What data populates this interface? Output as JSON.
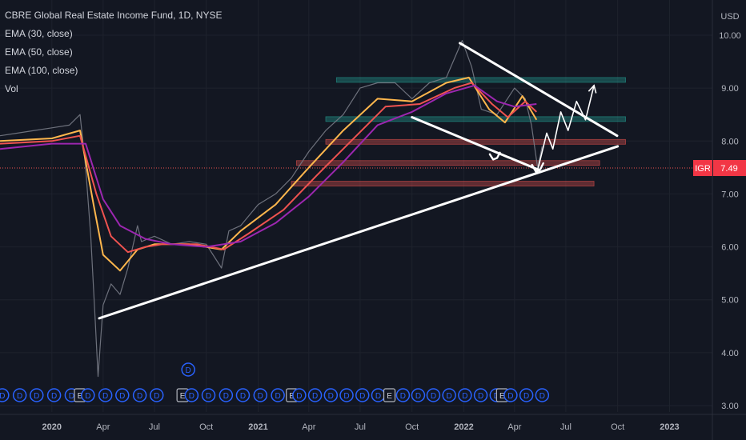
{
  "chart_data": {
    "type": "line",
    "title": "CBRE Global Real Estate Income Fund, 1D, NYSE",
    "indicators": [
      "EMA (30, close)",
      "EMA (50, close)",
      "EMA (100, close)",
      "Vol"
    ],
    "currency": "USD",
    "symbol": "IGR",
    "last_price": "7.49",
    "x_ticks": [
      "2020",
      "Apr",
      "Jul",
      "Oct",
      "2021",
      "Apr",
      "Jul",
      "Oct",
      "2022",
      "Apr",
      "Jul",
      "Oct",
      "2023"
    ],
    "y_ticks": [
      "10.00",
      "9.00",
      "8.00",
      "7.00",
      "6.00",
      "5.00",
      "4.00",
      "3.00"
    ],
    "ylim": [
      3.0,
      10.0
    ],
    "x_start": "2019-10-01",
    "x_end": "2023-03-01",
    "series": [
      {
        "name": "price",
        "color": "#787b86",
        "x": [
          "2019-10-01",
          "2019-11-01",
          "2019-12-01",
          "2020-01-01",
          "2020-02-01",
          "2020-02-20",
          "2020-03-01",
          "2020-03-10",
          "2020-03-18",
          "2020-03-23",
          "2020-04-01",
          "2020-04-15",
          "2020-05-01",
          "2020-05-15",
          "2020-06-01",
          "2020-06-08",
          "2020-07-01",
          "2020-08-01",
          "2020-09-01",
          "2020-10-01",
          "2020-10-28",
          "2020-11-10",
          "2020-12-01",
          "2021-01-01",
          "2021-02-01",
          "2021-03-01",
          "2021-04-01",
          "2021-05-01",
          "2021-06-01",
          "2021-07-01",
          "2021-08-01",
          "2021-09-01",
          "2021-10-01",
          "2021-11-01",
          "2021-12-01",
          "2021-12-29",
          "2022-01-15",
          "2022-02-01",
          "2022-03-01",
          "2022-04-01",
          "2022-04-20",
          "2022-05-01",
          "2022-05-12",
          "2022-05-20"
        ],
        "values": [
          8.1,
          8.15,
          8.2,
          8.25,
          8.3,
          8.5,
          7.5,
          6.2,
          4.6,
          3.55,
          4.9,
          5.3,
          5.1,
          5.6,
          6.4,
          6.1,
          6.2,
          6.05,
          6.1,
          6.05,
          5.6,
          6.3,
          6.4,
          6.8,
          7.0,
          7.3,
          7.8,
          8.2,
          8.5,
          9.0,
          9.1,
          9.1,
          8.8,
          9.1,
          9.2,
          9.9,
          9.4,
          8.6,
          8.5,
          9.0,
          8.8,
          8.3,
          7.49,
          7.9
        ]
      },
      {
        "name": "EMA (30, close)",
        "color": "#ffb74d",
        "x": [
          "2019-10-01",
          "2020-01-01",
          "2020-02-20",
          "2020-03-15",
          "2020-04-01",
          "2020-05-01",
          "2020-06-01",
          "2020-07-01",
          "2020-09-01",
          "2020-10-28",
          "2020-12-01",
          "2021-02-01",
          "2021-04-01",
          "2021-06-01",
          "2021-08-01",
          "2021-10-01",
          "2021-12-01",
          "2022-01-10",
          "2022-02-15",
          "2022-03-15",
          "2022-04-15",
          "2022-05-10"
        ],
        "values": [
          8.0,
          8.05,
          8.2,
          6.8,
          5.85,
          5.55,
          5.95,
          6.05,
          6.05,
          5.95,
          6.3,
          6.8,
          7.5,
          8.2,
          8.8,
          8.75,
          9.1,
          9.2,
          8.6,
          8.35,
          8.85,
          8.4
        ]
      },
      {
        "name": "EMA (50, close)",
        "color": "#ef5350",
        "x": [
          "2019-10-01",
          "2020-01-01",
          "2020-02-20",
          "2020-03-20",
          "2020-04-15",
          "2020-05-15",
          "2020-06-15",
          "2020-07-15",
          "2020-09-15",
          "2020-11-01",
          "2020-12-15",
          "2021-02-15",
          "2021-04-15",
          "2021-06-15",
          "2021-08-15",
          "2021-10-15",
          "2021-12-15",
          "2022-01-15",
          "2022-02-20",
          "2022-03-20",
          "2022-04-20",
          "2022-05-10"
        ],
        "values": [
          7.95,
          8.0,
          8.1,
          7.0,
          6.2,
          5.9,
          6.0,
          6.05,
          6.05,
          5.95,
          6.25,
          6.7,
          7.35,
          8.0,
          8.65,
          8.7,
          9.0,
          9.1,
          8.7,
          8.45,
          8.75,
          8.55
        ]
      },
      {
        "name": "EMA (100, close)",
        "color": "#9c27b0",
        "x": [
          "2019-10-01",
          "2020-01-01",
          "2020-03-01",
          "2020-04-01",
          "2020-05-01",
          "2020-06-15",
          "2020-08-01",
          "2020-10-01",
          "2020-12-01",
          "2021-02-01",
          "2021-04-01",
          "2021-06-01",
          "2021-08-01",
          "2021-10-01",
          "2021-12-01",
          "2022-01-20",
          "2022-03-01",
          "2022-04-01",
          "2022-05-10"
        ],
        "values": [
          7.85,
          7.95,
          7.95,
          6.9,
          6.4,
          6.15,
          6.05,
          6.0,
          6.1,
          6.45,
          6.95,
          7.6,
          8.3,
          8.55,
          8.9,
          9.05,
          8.75,
          8.65,
          8.7
        ]
      }
    ],
    "zones": [
      {
        "kind": "resistance",
        "color": "#26a69a",
        "x0": "2021-05-20",
        "x1": "2022-10-15",
        "y0": 9.14,
        "y1": 9.2
      },
      {
        "kind": "resistance",
        "color": "#26a69a",
        "x0": "2021-05-01",
        "x1": "2022-10-15",
        "y0": 8.4,
        "y1": 8.46
      },
      {
        "kind": "support",
        "color": "#ef5350",
        "x0": "2021-05-01",
        "x1": "2022-10-15",
        "y0": 7.97,
        "y1": 8.03
      },
      {
        "kind": "support",
        "color": "#ef5350",
        "x0": "2021-03-10",
        "x1": "2022-08-30",
        "y0": 7.55,
        "y1": 7.63
      },
      {
        "kind": "support",
        "color": "#ef5350",
        "x0": "2021-03-01",
        "x1": "2022-08-20",
        "y0": 7.17,
        "y1": 7.24
      }
    ],
    "price_line": 7.49,
    "trendlines": [
      {
        "x0": "2020-03-25",
        "y0": 4.65,
        "x1": "2022-10-01",
        "y1": 7.9
      },
      {
        "x0": "2021-10-01",
        "y0": 8.45,
        "x1": "2022-05-15",
        "y1": 7.45
      },
      {
        "x0": "2021-12-25",
        "y0": 9.85,
        "x1": "2022-09-30",
        "y1": 8.1
      }
    ],
    "sketches": [
      {
        "kind": "arrow",
        "points": [
          [
            "2022-05-12",
            7.45
          ],
          [
            "2022-05-28",
            8.15
          ],
          [
            "2022-06-08",
            7.85
          ],
          [
            "2022-06-22",
            8.55
          ],
          [
            "2022-07-05",
            8.2
          ],
          [
            "2022-07-20",
            8.75
          ],
          [
            "2022-08-05",
            8.4
          ],
          [
            "2022-08-20",
            9.05
          ]
        ]
      },
      {
        "kind": "curve",
        "points": [
          [
            "2022-02-16",
            7.75
          ],
          [
            "2022-02-22",
            7.65
          ],
          [
            "2022-03-01",
            7.68
          ],
          [
            "2022-03-06",
            7.78
          ]
        ]
      },
      {
        "kind": "curve",
        "points": [
          [
            "2022-05-02",
            7.55
          ],
          [
            "2022-05-09",
            7.42
          ],
          [
            "2022-05-17",
            7.47
          ],
          [
            "2022-05-22",
            7.58
          ]
        ]
      }
    ],
    "events": [
      {
        "date": "2019-10-05",
        "type": "D"
      },
      {
        "date": "2019-11-05",
        "type": "D"
      },
      {
        "date": "2019-12-05",
        "type": "D"
      },
      {
        "date": "2020-01-05",
        "type": "D"
      },
      {
        "date": "2020-02-05",
        "type": "D"
      },
      {
        "date": "2020-02-20",
        "type": "E"
      },
      {
        "date": "2020-03-05",
        "type": "D"
      },
      {
        "date": "2020-04-05",
        "type": "D"
      },
      {
        "date": "2020-05-05",
        "type": "D"
      },
      {
        "date": "2020-06-05",
        "type": "D"
      },
      {
        "date": "2020-07-05",
        "type": "D"
      },
      {
        "date": "2020-08-20",
        "type": "E"
      },
      {
        "date": "2020-08-30",
        "type": "D",
        "raised": true
      },
      {
        "date": "2020-09-05",
        "type": "D"
      },
      {
        "date": "2020-10-05",
        "type": "D"
      },
      {
        "date": "2020-11-05",
        "type": "D"
      },
      {
        "date": "2020-12-05",
        "type": "D"
      },
      {
        "date": "2021-01-05",
        "type": "D"
      },
      {
        "date": "2021-02-05",
        "type": "D"
      },
      {
        "date": "2021-03-02",
        "type": "E"
      },
      {
        "date": "2021-03-15",
        "type": "D"
      },
      {
        "date": "2021-04-12",
        "type": "D"
      },
      {
        "date": "2021-05-10",
        "type": "D"
      },
      {
        "date": "2021-06-07",
        "type": "D"
      },
      {
        "date": "2021-07-05",
        "type": "D"
      },
      {
        "date": "2021-08-02",
        "type": "D"
      },
      {
        "date": "2021-08-22",
        "type": "E"
      },
      {
        "date": "2021-09-15",
        "type": "D"
      },
      {
        "date": "2021-10-12",
        "type": "D"
      },
      {
        "date": "2021-11-08",
        "type": "D"
      },
      {
        "date": "2021-12-06",
        "type": "D"
      },
      {
        "date": "2022-01-03",
        "type": "D"
      },
      {
        "date": "2022-01-31",
        "type": "D"
      },
      {
        "date": "2022-02-28",
        "type": "D"
      },
      {
        "date": "2022-03-10",
        "type": "E"
      },
      {
        "date": "2022-03-25",
        "type": "D"
      },
      {
        "date": "2022-04-22",
        "type": "D"
      },
      {
        "date": "2022-05-20",
        "type": "D"
      }
    ]
  }
}
